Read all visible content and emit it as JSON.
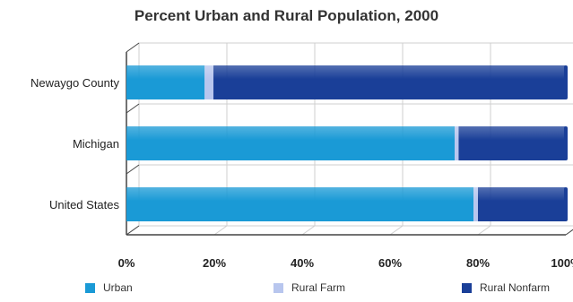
{
  "chart_data": {
    "type": "bar",
    "orientation": "horizontal",
    "stacked": true,
    "title": "Percent Urban and Rural Population, 2000",
    "categories": [
      "Newaygo County",
      "Michigan",
      "United States"
    ],
    "series": [
      {
        "name": "Urban",
        "values": [
          17.8,
          74.7,
          79.0
        ],
        "color": "#1a9ad6"
      },
      {
        "name": "Rural Farm",
        "values": [
          2.0,
          0.9,
          1.0
        ],
        "color": "#b8c6ee"
      },
      {
        "name": "Rural Nonfarm",
        "values": [
          80.2,
          24.4,
          20.0
        ],
        "color": "#1a3f98"
      }
    ],
    "x_ticks": [
      "0%",
      "20%",
      "40%",
      "60%",
      "80%",
      "100%"
    ],
    "xlim": [
      0,
      100
    ],
    "grid": true,
    "legend": "bottom"
  }
}
